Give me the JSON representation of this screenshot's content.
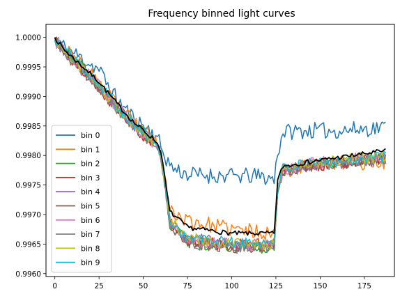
{
  "chart_data": {
    "type": "line",
    "title": "Frequency binned light curves",
    "xlabel": "",
    "ylabel": "",
    "xlim": [
      -5,
      192
    ],
    "ylim": [
      0.99595,
      1.00022
    ],
    "grid": false,
    "legend_placement": "lower left",
    "x_ticks": [
      0,
      25,
      50,
      75,
      100,
      125,
      150,
      175
    ],
    "x_tick_labels": [
      "0",
      "25",
      "50",
      "75",
      "100",
      "125",
      "150",
      "175"
    ],
    "y_ticks": [
      0.996,
      0.9965,
      0.997,
      0.9975,
      0.998,
      0.9985,
      0.999,
      0.9995,
      1.0
    ],
    "y_tick_labels": [
      "0.9960",
      "0.9965",
      "0.9970",
      "0.9975",
      "0.9980",
      "0.9985",
      "0.9990",
      "0.9995",
      "1.0000"
    ],
    "x_range": [
      0,
      187
    ],
    "series": [
      {
        "name": "bin 0",
        "color": "#1f77b4",
        "anchors": [
          [
            0,
            1.0
          ],
          [
            5,
            0.99985
          ],
          [
            25,
            0.99945
          ],
          [
            35,
            0.99895
          ],
          [
            45,
            0.99862
          ],
          [
            57,
            0.99835
          ],
          [
            60,
            0.99815
          ],
          [
            62,
            0.998
          ],
          [
            66,
            0.9978
          ],
          [
            75,
            0.99768
          ],
          [
            100,
            0.99765
          ],
          [
            115,
            0.99765
          ],
          [
            124,
            0.9976
          ],
          [
            126,
            0.99805
          ],
          [
            129,
            0.9984
          ],
          [
            140,
            0.99842
          ],
          [
            160,
            0.99842
          ],
          [
            187,
            0.99848
          ]
        ],
        "noise": 0.00014,
        "seed": 11
      },
      {
        "name": "bin 1",
        "color": "#ff7f0e",
        "anchors": [
          [
            0,
            1.0
          ],
          [
            5,
            0.99982
          ],
          [
            25,
            0.99922
          ],
          [
            35,
            0.99885
          ],
          [
            45,
            0.99855
          ],
          [
            57,
            0.99825
          ],
          [
            60,
            0.99805
          ],
          [
            62,
            0.99775
          ],
          [
            65,
            0.99705
          ],
          [
            75,
            0.9969
          ],
          [
            100,
            0.99675
          ],
          [
            120,
            0.9967
          ],
          [
            124,
            0.99665
          ],
          [
            126,
            0.99745
          ],
          [
            129,
            0.99775
          ],
          [
            150,
            0.99785
          ],
          [
            187,
            0.9979
          ]
        ],
        "noise": 0.00013,
        "seed": 23
      },
      {
        "name": "bin 2",
        "color": "#2ca02c",
        "anchors": [
          [
            0,
            0.99995
          ],
          [
            5,
            0.9998
          ],
          [
            25,
            0.9992
          ],
          [
            35,
            0.99882
          ],
          [
            45,
            0.9985
          ],
          [
            57,
            0.9982
          ],
          [
            60,
            0.998
          ],
          [
            62,
            0.99755
          ],
          [
            65,
            0.99685
          ],
          [
            75,
            0.99655
          ],
          [
            100,
            0.99645
          ],
          [
            120,
            0.99645
          ],
          [
            124,
            0.9965
          ],
          [
            126,
            0.9974
          ],
          [
            129,
            0.99775
          ],
          [
            150,
            0.99785
          ],
          [
            187,
            0.99795
          ]
        ],
        "noise": 0.00011,
        "seed": 37
      },
      {
        "name": "bin 3",
        "color": "#d62728",
        "anchors": [
          [
            0,
            0.99995
          ],
          [
            5,
            0.99975
          ],
          [
            25,
            0.99915
          ],
          [
            35,
            0.9988
          ],
          [
            45,
            0.99848
          ],
          [
            57,
            0.99818
          ],
          [
            60,
            0.998
          ],
          [
            62,
            0.99755
          ],
          [
            65,
            0.99685
          ],
          [
            75,
            0.99655
          ],
          [
            100,
            0.99648
          ],
          [
            120,
            0.99648
          ],
          [
            124,
            0.9965
          ],
          [
            126,
            0.99745
          ],
          [
            129,
            0.99775
          ],
          [
            150,
            0.99785
          ],
          [
            187,
            0.99795
          ]
        ],
        "noise": 0.00011,
        "seed": 41
      },
      {
        "name": "bin 4",
        "color": "#9467bd",
        "anchors": [
          [
            0,
            0.99995
          ],
          [
            5,
            0.99978
          ],
          [
            25,
            0.99918
          ],
          [
            35,
            0.99882
          ],
          [
            45,
            0.9985
          ],
          [
            57,
            0.9982
          ],
          [
            60,
            0.998
          ],
          [
            62,
            0.9976
          ],
          [
            65,
            0.9969
          ],
          [
            75,
            0.9966
          ],
          [
            100,
            0.9965
          ],
          [
            120,
            0.9965
          ],
          [
            124,
            0.9965
          ],
          [
            126,
            0.99745
          ],
          [
            129,
            0.99775
          ],
          [
            150,
            0.99785
          ],
          [
            187,
            0.99795
          ]
        ],
        "noise": 0.0001,
        "seed": 53
      },
      {
        "name": "bin 5",
        "color": "#8c564b",
        "anchors": [
          [
            0,
            0.99995
          ],
          [
            5,
            0.99975
          ],
          [
            25,
            0.99915
          ],
          [
            35,
            0.9988
          ],
          [
            45,
            0.99848
          ],
          [
            57,
            0.99818
          ],
          [
            60,
            0.998
          ],
          [
            62,
            0.99755
          ],
          [
            65,
            0.99685
          ],
          [
            75,
            0.99652
          ],
          [
            100,
            0.99645
          ],
          [
            120,
            0.99645
          ],
          [
            124,
            0.9965
          ],
          [
            126,
            0.99745
          ],
          [
            129,
            0.99775
          ],
          [
            150,
            0.99785
          ],
          [
            187,
            0.99795
          ]
        ],
        "noise": 0.0001,
        "seed": 67
      },
      {
        "name": "bin 6",
        "color": "#e377c2",
        "anchors": [
          [
            0,
            0.99995
          ],
          [
            5,
            0.99978
          ],
          [
            25,
            0.99918
          ],
          [
            35,
            0.99882
          ],
          [
            45,
            0.9985
          ],
          [
            57,
            0.9982
          ],
          [
            60,
            0.998
          ],
          [
            62,
            0.99758
          ],
          [
            65,
            0.99688
          ],
          [
            75,
            0.99658
          ],
          [
            100,
            0.99648
          ],
          [
            120,
            0.99648
          ],
          [
            124,
            0.9965
          ],
          [
            126,
            0.99748
          ],
          [
            129,
            0.99778
          ],
          [
            150,
            0.99788
          ],
          [
            187,
            0.99798
          ]
        ],
        "noise": 0.00011,
        "seed": 79
      },
      {
        "name": "bin 7",
        "color": "#7f7f7f",
        "anchors": [
          [
            0,
            0.99995
          ],
          [
            5,
            0.99975
          ],
          [
            25,
            0.99915
          ],
          [
            35,
            0.9988
          ],
          [
            45,
            0.99848
          ],
          [
            57,
            0.99818
          ],
          [
            60,
            0.998
          ],
          [
            62,
            0.99755
          ],
          [
            65,
            0.99685
          ],
          [
            75,
            0.99652
          ],
          [
            100,
            0.99645
          ],
          [
            120,
            0.99645
          ],
          [
            124,
            0.9965
          ],
          [
            126,
            0.99745
          ],
          [
            129,
            0.99775
          ],
          [
            150,
            0.99785
          ],
          [
            187,
            0.99795
          ]
        ],
        "noise": 0.00011,
        "seed": 83
      },
      {
        "name": "bin 8",
        "color": "#bcbd22",
        "anchors": [
          [
            0,
            0.99995
          ],
          [
            5,
            0.99978
          ],
          [
            25,
            0.99918
          ],
          [
            35,
            0.99882
          ],
          [
            45,
            0.9985
          ],
          [
            57,
            0.9982
          ],
          [
            60,
            0.998
          ],
          [
            62,
            0.9976
          ],
          [
            65,
            0.9969
          ],
          [
            75,
            0.9966
          ],
          [
            100,
            0.9965
          ],
          [
            120,
            0.9965
          ],
          [
            124,
            0.9965
          ],
          [
            126,
            0.99748
          ],
          [
            129,
            0.99778
          ],
          [
            150,
            0.99788
          ],
          [
            187,
            0.99798
          ]
        ],
        "noise": 0.0001,
        "seed": 97
      },
      {
        "name": "bin 9",
        "color": "#17becf",
        "anchors": [
          [
            0,
            0.99995
          ],
          [
            5,
            0.99982
          ],
          [
            25,
            0.99922
          ],
          [
            35,
            0.99885
          ],
          [
            45,
            0.99852
          ],
          [
            57,
            0.99822
          ],
          [
            60,
            0.99802
          ],
          [
            62,
            0.9976
          ],
          [
            65,
            0.9969
          ],
          [
            75,
            0.9966
          ],
          [
            100,
            0.99652
          ],
          [
            120,
            0.99652
          ],
          [
            124,
            0.99655
          ],
          [
            126,
            0.99748
          ],
          [
            129,
            0.99778
          ],
          [
            150,
            0.99788
          ],
          [
            187,
            0.99798
          ]
        ],
        "noise": 0.0001,
        "seed": 101
      },
      {
        "name": "",
        "color": "#000000",
        "anchors": [
          [
            0,
            1.0
          ],
          [
            5,
            0.9998
          ],
          [
            25,
            0.99925
          ],
          [
            35,
            0.99888
          ],
          [
            45,
            0.99855
          ],
          [
            57,
            0.99825
          ],
          [
            60,
            0.99808
          ],
          [
            62,
            0.99765
          ],
          [
            65,
            0.99705
          ],
          [
            75,
            0.99678
          ],
          [
            100,
            0.99668
          ],
          [
            120,
            0.99668
          ],
          [
            124,
            0.99668
          ],
          [
            126,
            0.99758
          ],
          [
            129,
            0.99782
          ],
          [
            150,
            0.99792
          ],
          [
            187,
            0.99808
          ]
        ],
        "noise": 4e-05,
        "seed": 7,
        "in_legend": false
      }
    ]
  }
}
